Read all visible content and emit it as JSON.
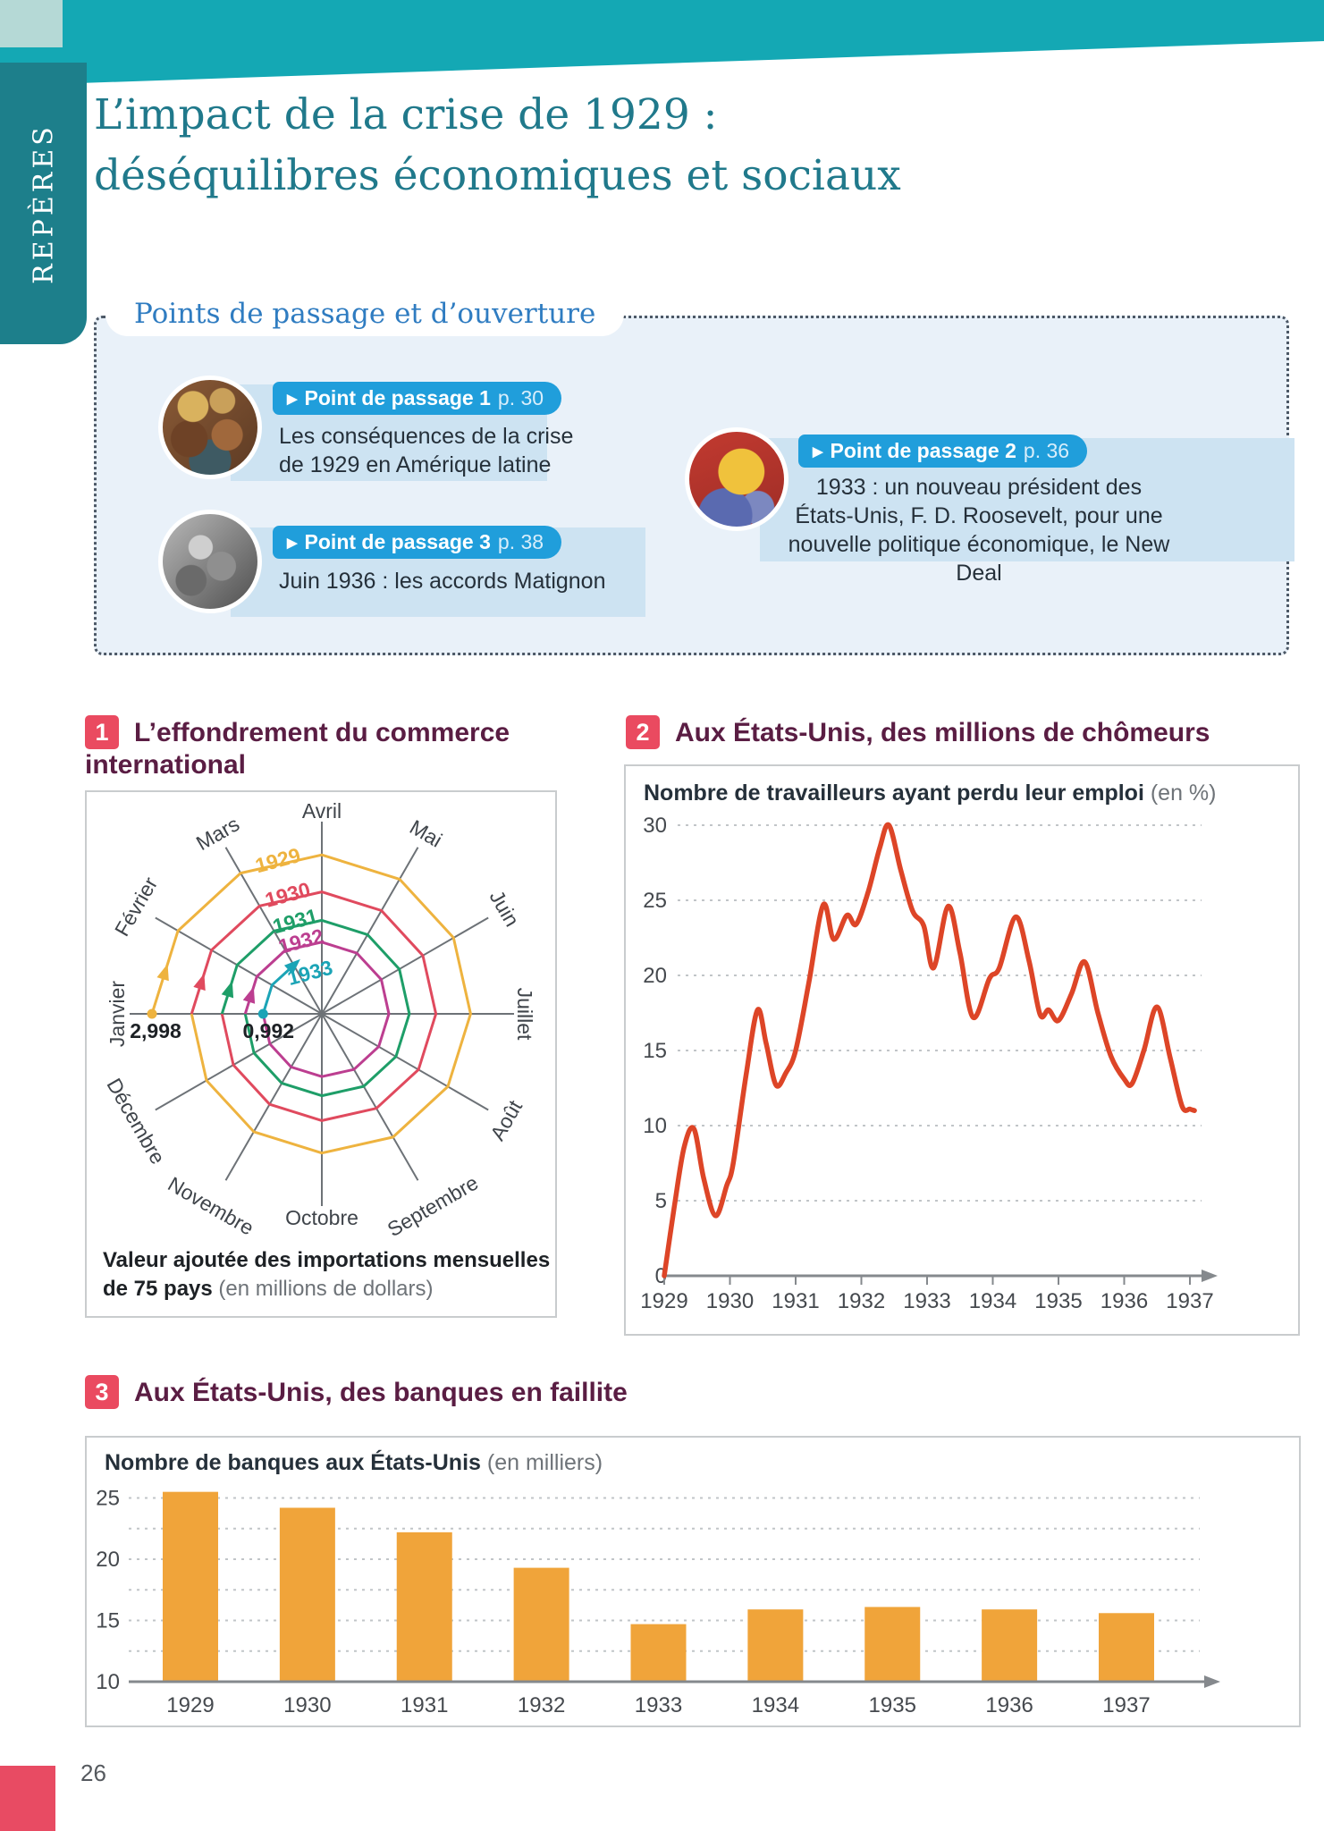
{
  "page": {
    "number": "26",
    "section_tab": "REPÈRES"
  },
  "header": {
    "title_line1": "L’impact de la crise de 1929 :",
    "title_line2": "déséquilibres économiques et sociaux"
  },
  "points_box": {
    "heading": "Points de passage et d’ouverture",
    "banner_icon": "▶",
    "items": [
      {
        "banner_bold": "Point de passage 1",
        "banner_page": "p. 30",
        "text_lines": [
          "Les conséquences de la crise",
          "de 1929 en Amérique latine"
        ]
      },
      {
        "banner_bold": "Point de passage 2",
        "banner_page": "p. 36",
        "text_lines": [
          "1933 : un nouveau président des",
          "États-Unis, F. D. Roosevelt, pour une",
          "nouvelle politique économique, le New Deal"
        ]
      },
      {
        "banner_bold": "Point de passage 3",
        "banner_page": "p. 38",
        "text_lines": [
          "Juin 1936 : les accords Matignon"
        ]
      }
    ]
  },
  "sections": [
    {
      "number": "1",
      "title_lines": [
        "L’effondrement du commerce",
        "international"
      ]
    },
    {
      "number": "2",
      "title_lines": [
        "Aux États-Unis, des millions de chômeurs"
      ]
    },
    {
      "number": "3",
      "title_lines": [
        "Aux États-Unis, des banques en faillite"
      ]
    }
  ],
  "chart_data": [
    {
      "type": "radar-spiral",
      "title": "L’effondrement du commerce international",
      "months": [
        "Janvier",
        "Février",
        "Mars",
        "Avril",
        "Mai",
        "Juin",
        "Juillet",
        "Août",
        "Septembre",
        "Octobre",
        "Novembre",
        "Décembre"
      ],
      "start_value_label": "2,998",
      "end_value_label": "0,992",
      "max_value": 2998,
      "series": [
        {
          "name": "1929",
          "color": "#eeb33f",
          "values": [
            2998,
            2932,
            2868,
            2805,
            2744,
            2684,
            2625,
            2568,
            2512,
            2457,
            2403,
            2351
          ]
        },
        {
          "name": "1930",
          "color": "#e04a5e",
          "values": [
            2299,
            2249,
            2200,
            2152,
            2105,
            2059,
            2014,
            1970,
            1926,
            1884,
            1843,
            1803
          ]
        },
        {
          "name": "1931",
          "color": "#1e9e68",
          "values": [
            1763,
            1725,
            1687,
            1650,
            1614,
            1579,
            1544,
            1510,
            1477,
            1445,
            1414,
            1383
          ]
        },
        {
          "name": "1932",
          "color": "#bc3e90",
          "values": [
            1353,
            1323,
            1294,
            1266,
            1238,
            1211,
            1184,
            1159,
            1133,
            1108,
            1084,
            1060
          ]
        },
        {
          "name": "1933",
          "color": "#1ba4b6",
          "values": [
            1037,
            1015,
            992
          ]
        }
      ],
      "caption_line1": "Valeur ajoutée des importations mensuelles",
      "caption_line2_bold": "de 75 pays",
      "caption_line2_unit": "(en millions de dollars)"
    },
    {
      "type": "line",
      "subtitle_bold": "Nombre de travailleurs ayant perdu leur emploi",
      "subtitle_unit": "(en %)",
      "color": "#dd4527",
      "ylim": [
        0,
        30
      ],
      "y_ticks": [
        0,
        5,
        10,
        15,
        20,
        25,
        30
      ],
      "x_ticks": [
        1929,
        1930,
        1931,
        1932,
        1933,
        1934,
        1935,
        1936,
        1937
      ],
      "points": [
        [
          1929.0,
          0
        ],
        [
          1929.15,
          4.5
        ],
        [
          1929.3,
          8.5
        ],
        [
          1929.45,
          9.8
        ],
        [
          1929.6,
          6.5
        ],
        [
          1929.78,
          4.0
        ],
        [
          1929.95,
          6.0
        ],
        [
          1930.05,
          7.5
        ],
        [
          1930.25,
          13.5
        ],
        [
          1930.42,
          17.7
        ],
        [
          1930.55,
          15.5
        ],
        [
          1930.7,
          12.7
        ],
        [
          1930.85,
          13.5
        ],
        [
          1931.0,
          15.0
        ],
        [
          1931.2,
          19.5
        ],
        [
          1931.42,
          24.7
        ],
        [
          1931.58,
          22.4
        ],
        [
          1931.78,
          24.0
        ],
        [
          1931.92,
          23.4
        ],
        [
          1932.1,
          25.5
        ],
        [
          1932.28,
          28.5
        ],
        [
          1932.42,
          30.0
        ],
        [
          1932.6,
          27.0
        ],
        [
          1932.78,
          24.3
        ],
        [
          1932.95,
          23.3
        ],
        [
          1933.1,
          20.5
        ],
        [
          1933.32,
          24.6
        ],
        [
          1933.5,
          21.5
        ],
        [
          1933.7,
          17.2
        ],
        [
          1933.95,
          19.8
        ],
        [
          1934.1,
          20.5
        ],
        [
          1934.35,
          23.9
        ],
        [
          1934.55,
          21.0
        ],
        [
          1934.72,
          17.4
        ],
        [
          1934.85,
          17.7
        ],
        [
          1935.0,
          17.0
        ],
        [
          1935.2,
          18.8
        ],
        [
          1935.4,
          20.9
        ],
        [
          1935.6,
          17.5
        ],
        [
          1935.8,
          14.6
        ],
        [
          1936.0,
          13.1
        ],
        [
          1936.12,
          12.8
        ],
        [
          1936.3,
          15.0
        ],
        [
          1936.5,
          17.9
        ],
        [
          1936.7,
          14.5
        ],
        [
          1936.88,
          11.3
        ],
        [
          1937.0,
          11.1
        ],
        [
          1937.07,
          11.0
        ]
      ]
    },
    {
      "type": "bar",
      "subtitle_bold": "Nombre de banques aux États-Unis",
      "subtitle_unit": "(en milliers)",
      "color": "#f0a43a",
      "categories": [
        "1929",
        "1930",
        "1931",
        "1932",
        "1933",
        "1934",
        "1935",
        "1936",
        "1937"
      ],
      "values": [
        25.5,
        24.2,
        22.2,
        19.3,
        14.7,
        15.9,
        16.1,
        15.9,
        15.6
      ],
      "baseline": 10,
      "y_ticks": [
        10,
        15,
        20,
        25
      ],
      "minor_grid": [
        12.5,
        17.5,
        22.5
      ]
    }
  ],
  "colors": {
    "band": "#14a8b4",
    "tab": "#1d7f8b",
    "corner": "#b5d9d6",
    "title": "#20798b",
    "heading_blue": "#2f7cc1",
    "box_bg": "#e9f1f9",
    "card_bg": "#cde3f2",
    "banner": "#209edb",
    "banner_page": "#d8eefb",
    "text_dark": "#25303a",
    "badge": "#ea4a60",
    "section_title": "#5a1d43",
    "unit_gray": "#6e7378",
    "axis": "#85898d",
    "grid": "#c1c5c8",
    "tick_text": "#45494e",
    "month_label": "#3f444a",
    "pink_block": "#e84b63"
  }
}
